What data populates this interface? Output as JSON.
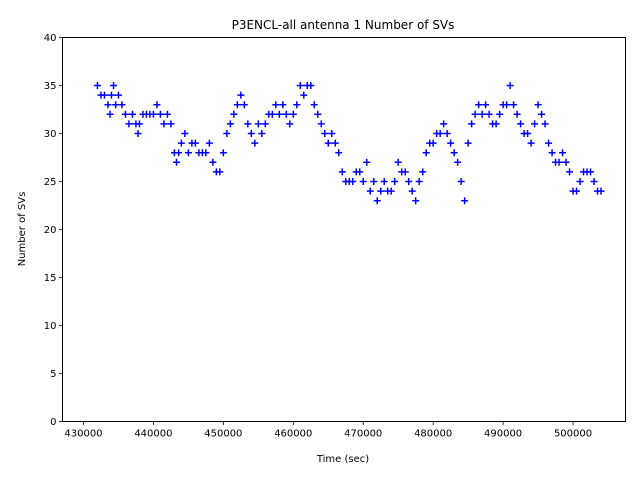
{
  "chart_data": {
    "type": "scatter",
    "title": "P3ENCL-all antenna 1 Number of SVs",
    "xlabel": "Time (sec)",
    "ylabel": "Number of SVs",
    "xlim": [
      427000,
      507500
    ],
    "ylim": [
      0,
      40
    ],
    "xticks": [
      430000,
      440000,
      450000,
      460000,
      470000,
      480000,
      490000,
      500000
    ],
    "xtick_labels": [
      "430000",
      "440000",
      "450000",
      "460000",
      "470000",
      "480000",
      "490000",
      "500000"
    ],
    "yticks": [
      0,
      5,
      10,
      15,
      20,
      25,
      30,
      35,
      40
    ],
    "ytick_labels": [
      "0",
      "5",
      "10",
      "15",
      "20",
      "25",
      "30",
      "35",
      "40"
    ],
    "grid": false,
    "marker": "+",
    "color": "#0000ff",
    "series": [
      {
        "name": "Number of SVs",
        "x": [
          432000,
          432500,
          433000,
          433500,
          433800,
          434000,
          434300,
          434600,
          435000,
          435500,
          436000,
          436500,
          437000,
          437500,
          437800,
          438000,
          438500,
          439000,
          439500,
          440000,
          440500,
          441000,
          441500,
          442000,
          442500,
          443000,
          443300,
          443600,
          444000,
          444500,
          445000,
          445500,
          446000,
          446500,
          447000,
          447500,
          448000,
          448500,
          449000,
          449500,
          450000,
          450500,
          451000,
          451500,
          452000,
          452500,
          453000,
          453500,
          454000,
          454500,
          455000,
          455500,
          456000,
          456500,
          457000,
          457500,
          458000,
          458500,
          459000,
          459500,
          460000,
          460500,
          461000,
          461500,
          462000,
          462500,
          463000,
          463500,
          464000,
          464500,
          465000,
          465500,
          466000,
          466500,
          467000,
          467500,
          468000,
          468500,
          469000,
          469500,
          470000,
          470500,
          471000,
          471500,
          472000,
          472500,
          473000,
          473500,
          474000,
          474500,
          475000,
          475500,
          476000,
          476500,
          477000,
          477500,
          478000,
          478500,
          479000,
          479500,
          480000,
          480500,
          481000,
          481500,
          482000,
          482500,
          483000,
          483500,
          484000,
          484500,
          485000,
          485500,
          486000,
          486500,
          487000,
          487500,
          488000,
          488500,
          489000,
          489500,
          490000,
          490500,
          491000,
          491500,
          492000,
          492500,
          493000,
          493500,
          494000,
          494500,
          495000,
          495500,
          496000,
          496500,
          497000,
          497500,
          498000,
          498500,
          499000,
          499500,
          500000,
          500500,
          501000,
          501500,
          502000,
          502500,
          503000,
          503500,
          504000
        ],
        "y": [
          35,
          34,
          34,
          33,
          32,
          34,
          35,
          33,
          34,
          33,
          32,
          31,
          32,
          31,
          30,
          31,
          32,
          32,
          32,
          32,
          33,
          32,
          31,
          32,
          31,
          28,
          27,
          28,
          29,
          30,
          28,
          29,
          29,
          28,
          28,
          28,
          29,
          27,
          26,
          26,
          28,
          30,
          31,
          32,
          33,
          34,
          33,
          31,
          30,
          29,
          31,
          30,
          31,
          32,
          32,
          33,
          32,
          33,
          32,
          31,
          32,
          33,
          35,
          34,
          35,
          35,
          33,
          32,
          31,
          30,
          29,
          30,
          29,
          28,
          26,
          25,
          25,
          25,
          26,
          26,
          25,
          27,
          24,
          25,
          23,
          24,
          25,
          24,
          24,
          25,
          27,
          26,
          26,
          25,
          24,
          23,
          25,
          26,
          28,
          29,
          29,
          30,
          30,
          31,
          30,
          29,
          28,
          27,
          25,
          23,
          29,
          31,
          32,
          33,
          32,
          33,
          32,
          31,
          31,
          32,
          33,
          33,
          35,
          33,
          32,
          31,
          30,
          30,
          29,
          31,
          33,
          32,
          31,
          29,
          28,
          27,
          27,
          28,
          27,
          26,
          24,
          24,
          25,
          26,
          26,
          26,
          25,
          24,
          24
        ]
      }
    ]
  }
}
